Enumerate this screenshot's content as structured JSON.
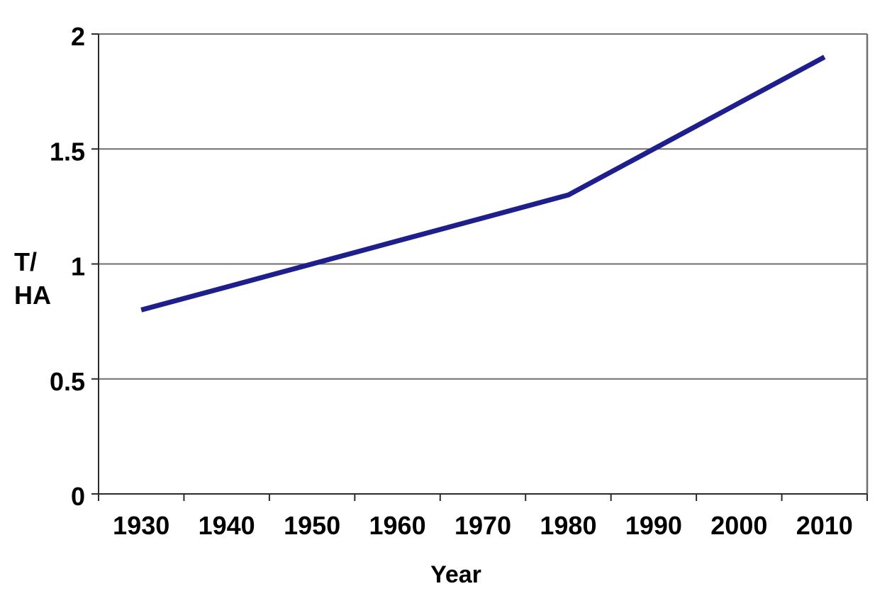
{
  "chart_data": {
    "type": "line",
    "title": "",
    "xlabel": "Year",
    "ylabel": "T/HA",
    "ylabel_lines": [
      "T/",
      "HA"
    ],
    "categories": [
      "1930",
      "1940",
      "1950",
      "1960",
      "1970",
      "1980",
      "1990",
      "2000",
      "2010"
    ],
    "series": [
      {
        "values": [
          0.8,
          0.9,
          1.0,
          1.1,
          1.2,
          1.3,
          1.5,
          1.7,
          1.9
        ]
      }
    ],
    "ylim": [
      0,
      2
    ],
    "yticks": [
      0,
      0.5,
      1,
      1.5,
      2
    ],
    "ytick_labels": [
      "0",
      "0.5",
      "1",
      "1.5",
      "2"
    ],
    "grid": true,
    "legend": "none",
    "colors": {
      "line": "#1e1e8c",
      "gridline": "#6e6e6e",
      "axis": "#2b2b2b",
      "text": "#000000",
      "background": "#ffffff"
    }
  }
}
